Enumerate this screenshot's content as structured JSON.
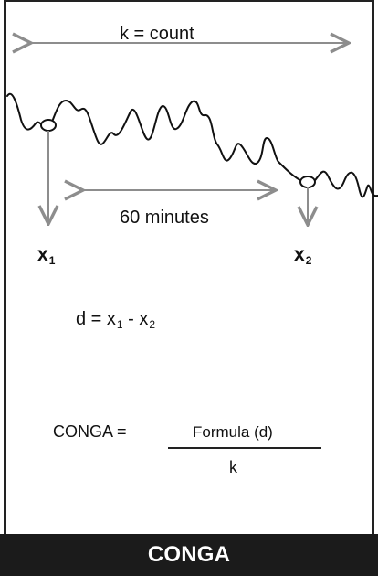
{
  "diagram": {
    "top_label": "k = count",
    "interval_label": "60 minutes",
    "point_1": {
      "base": "x",
      "subscript": "1"
    },
    "point_2": {
      "base": "x",
      "subscript": "2"
    },
    "difference": {
      "left": "d = x",
      "subscript_1": "1",
      "middle": " - x",
      "subscript_2": "2"
    },
    "conga_formula": {
      "left": "CONGA =",
      "numerator": "Formula (d)",
      "denominator": "k"
    },
    "footer_title": "CONGA"
  },
  "colors": {
    "ink": "#111111",
    "arrow": "#8d8d8d",
    "footer_background": "#1b1b1b",
    "footer_text": "#ffffff"
  }
}
